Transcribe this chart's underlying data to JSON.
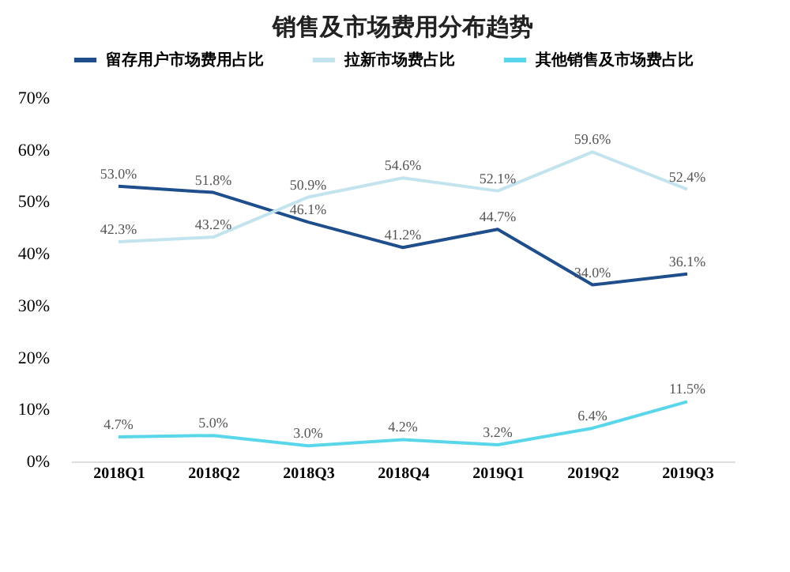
{
  "chart_data": {
    "type": "line",
    "title": "销售及市场费用分布趋势",
    "categories": [
      "2018Q1",
      "2018Q2",
      "2018Q3",
      "2018Q4",
      "2019Q1",
      "2019Q2",
      "2019Q3"
    ],
    "series": [
      {
        "name": "留存用户市场费用占比",
        "color": "#1f4e8c",
        "values": [
          53.0,
          51.8,
          46.1,
          41.2,
          44.7,
          34.0,
          36.1
        ],
        "value_labels": [
          "53.0%",
          "51.8%",
          "46.1%",
          "41.2%",
          "44.7%",
          "34.0%",
          "36.1%"
        ]
      },
      {
        "name": "拉新市场费占比",
        "color": "#c3e4ee",
        "values": [
          42.3,
          43.2,
          50.9,
          54.6,
          52.1,
          59.6,
          52.4
        ],
        "value_labels": [
          "42.3%",
          "43.2%",
          "50.9%",
          "54.6%",
          "52.1%",
          "59.6%",
          "52.4%"
        ]
      },
      {
        "name": "其他销售及市场费占比",
        "color": "#5ad6ea",
        "values": [
          4.7,
          5.0,
          3.0,
          4.2,
          3.2,
          6.4,
          11.5
        ],
        "value_labels": [
          "4.7%",
          "5.0%",
          "3.0%",
          "4.2%",
          "3.2%",
          "6.4%",
          "11.5%"
        ]
      }
    ],
    "ylim": [
      0,
      70
    ],
    "yticks": [
      {
        "value": 0,
        "label": "0%"
      },
      {
        "value": 10,
        "label": "10%"
      },
      {
        "value": 20,
        "label": "20%"
      },
      {
        "value": 30,
        "label": "30%"
      },
      {
        "value": 40,
        "label": "40%"
      },
      {
        "value": 50,
        "label": "50%"
      },
      {
        "value": 60,
        "label": "60%"
      },
      {
        "value": 70,
        "label": "70%"
      }
    ],
    "legend": "top",
    "grid": false,
    "marker": "none",
    "line_style": "solid"
  }
}
